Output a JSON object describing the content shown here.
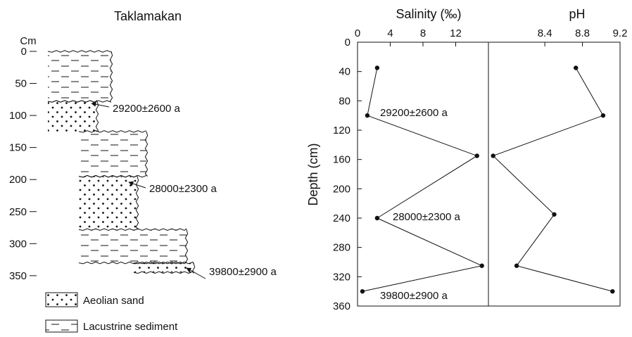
{
  "chart_data": [
    {
      "type": "column",
      "title": "Taklamakan",
      "ylabel": "Cm",
      "ylim": [
        0,
        350
      ],
      "yticks": [
        0,
        50,
        100,
        150,
        200,
        250,
        300,
        350
      ],
      "layers": [
        {
          "lithology": "Lacustrine sediment",
          "top": 0,
          "bottom": 78
        },
        {
          "lithology": "Aeolian sand",
          "top": 78,
          "bottom": 125,
          "age": "29200±2600 a"
        },
        {
          "lithology": "Lacustrine sediment",
          "top": 125,
          "bottom": 195
        },
        {
          "lithology": "Aeolian sand",
          "top": 195,
          "bottom": 278,
          "age": "28000±2300 a"
        },
        {
          "lithology": "Lacustrine sediment",
          "top": 278,
          "bottom": 330
        },
        {
          "lithology": "Aeolian sand",
          "top": 330,
          "bottom": 345,
          "age": "39800±2900 a"
        }
      ],
      "legend": [
        "Aeolian sand",
        "Lacustrine sediment"
      ]
    },
    {
      "type": "line",
      "title": "Salinity (‰)",
      "ylabel": "Depth (cm)",
      "xlim": [
        0,
        16
      ],
      "xticks": [
        "0",
        "4",
        "8",
        "12"
      ],
      "ylim": [
        0,
        360
      ],
      "yticks": [
        "0",
        "40",
        "80",
        "120",
        "160",
        "200",
        "240",
        "280",
        "320",
        "360"
      ],
      "series": [
        {
          "x": [
            2.4,
            1.2,
            14.6,
            2.4,
            15.2,
            0.6
          ],
          "y": [
            35,
            100,
            155,
            240,
            305,
            340
          ]
        }
      ],
      "annotations": [
        "29200±2600 a",
        "28000±2300 a",
        "39800±2900 a"
      ]
    },
    {
      "type": "line",
      "title": "pH",
      "xlim": [
        7.8,
        9.2
      ],
      "xticks": [
        "8.4",
        "8.8",
        "9.2"
      ],
      "ylim": [
        0,
        360
      ],
      "series": [
        {
          "x": [
            8.73,
            9.02,
            7.85,
            8.5,
            8.1,
            9.12
          ],
          "y": [
            35,
            100,
            155,
            235,
            305,
            340
          ]
        }
      ]
    }
  ]
}
